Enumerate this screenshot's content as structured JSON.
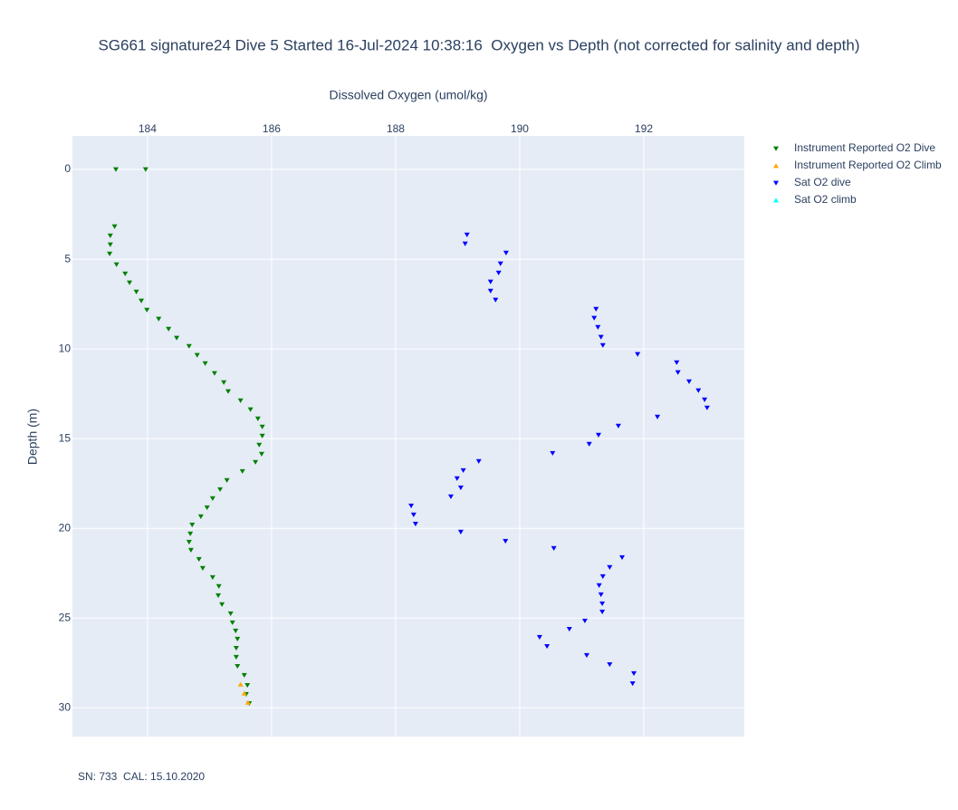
{
  "chart_data": {
    "type": "scatter",
    "title": "SG661 signature24 Dive 5 Started 16-Jul-2024 10:38:16  Oxygen vs Depth (not corrected for salinity and depth)",
    "x_label": "Dissolved Oxygen (umol/kg)",
    "y_label": "Depth (m)",
    "annotation": "SN: 733  CAL: 15.10.2020",
    "xlim": [
      182.79,
      193.62
    ],
    "xticks": [
      184,
      186,
      188,
      190,
      192
    ],
    "ylim": [
      -1.87,
      31.6
    ],
    "yticks": [
      0,
      5,
      10,
      15,
      20,
      25,
      30
    ],
    "y_reversed": true,
    "x_axis_side": "top",
    "grid": true,
    "legend": "top-right-outside",
    "series": [
      {
        "name": "Instrument Reported O2 Dive",
        "color": "#008000",
        "marker": "triangle-down",
        "x": [
          183.49,
          183.97,
          183.47,
          183.4,
          183.4,
          183.39,
          183.5,
          183.64,
          183.71,
          183.82,
          183.9,
          183.99,
          184.18,
          184.34,
          184.47,
          184.67,
          184.8,
          184.93,
          185.08,
          185.23,
          185.3,
          185.5,
          185.66,
          185.78,
          185.85,
          185.85,
          185.8,
          185.84,
          185.74,
          185.53,
          185.28,
          185.17,
          185.05,
          184.96,
          184.86,
          184.72,
          184.69,
          184.67,
          184.7,
          184.83,
          184.89,
          185.05,
          185.15,
          185.14,
          185.2,
          185.34,
          185.37,
          185.42,
          185.45,
          185.43,
          185.43,
          185.45,
          185.56,
          185.61,
          185.59,
          185.64
        ],
        "y": [
          0,
          0,
          3.18,
          3.69,
          4.19,
          4.7,
          5.3,
          5.81,
          6.31,
          6.82,
          7.32,
          7.83,
          8.33,
          8.89,
          9.39,
          9.85,
          10.35,
          10.81,
          11.36,
          11.87,
          12.37,
          12.88,
          13.38,
          13.89,
          14.34,
          14.85,
          15.35,
          15.86,
          16.31,
          16.82,
          17.32,
          17.83,
          18.33,
          18.84,
          19.34,
          19.8,
          20.3,
          20.76,
          21.21,
          21.72,
          22.22,
          22.73,
          23.23,
          23.74,
          24.24,
          24.75,
          25.25,
          25.71,
          26.16,
          26.67,
          27.17,
          27.68,
          28.18,
          28.74,
          29.24,
          29.75
        ]
      },
      {
        "name": "Instrument Reported O2 Climb",
        "color": "#ffa500",
        "marker": "triangle-up",
        "x": [
          185.5,
          185.56,
          185.62
        ],
        "y": [
          28.69,
          29.19,
          29.7
        ]
      },
      {
        "name": "Sat O2 dive",
        "color": "#0000ff",
        "marker": "triangle-down",
        "x": [
          189.15,
          189.12,
          189.78,
          189.69,
          189.66,
          189.53,
          189.53,
          189.61,
          191.23,
          191.2,
          191.26,
          191.31,
          191.34,
          191.9,
          192.53,
          192.55,
          192.73,
          192.88,
          192.98,
          193.02,
          192.22,
          191.59,
          191.27,
          191.12,
          190.53,
          189.34,
          189.09,
          188.99,
          189.05,
          188.89,
          188.25,
          188.29,
          188.32,
          189.05,
          189.77,
          190.55,
          191.65,
          191.45,
          191.34,
          191.28,
          191.31,
          191.33,
          191.33,
          191.05,
          190.8,
          190.32,
          190.44,
          191.08,
          191.45,
          191.84,
          191.82
        ],
        "y": [
          3.64,
          4.14,
          4.65,
          5.25,
          5.76,
          6.26,
          6.77,
          7.27,
          7.78,
          8.28,
          8.79,
          9.34,
          9.8,
          10.3,
          10.76,
          11.31,
          11.82,
          12.32,
          12.83,
          13.28,
          13.79,
          14.29,
          14.8,
          15.3,
          15.81,
          16.26,
          16.77,
          17.22,
          17.73,
          18.23,
          18.74,
          19.24,
          19.75,
          20.2,
          20.71,
          21.11,
          21.62,
          22.17,
          22.68,
          23.18,
          23.69,
          24.19,
          24.65,
          25.15,
          25.61,
          26.06,
          26.57,
          27.07,
          27.58,
          28.08,
          28.64
        ]
      },
      {
        "name": "Sat O2 climb",
        "color": "#00ffff",
        "marker": "triangle-up",
        "x": [],
        "y": []
      }
    ]
  }
}
